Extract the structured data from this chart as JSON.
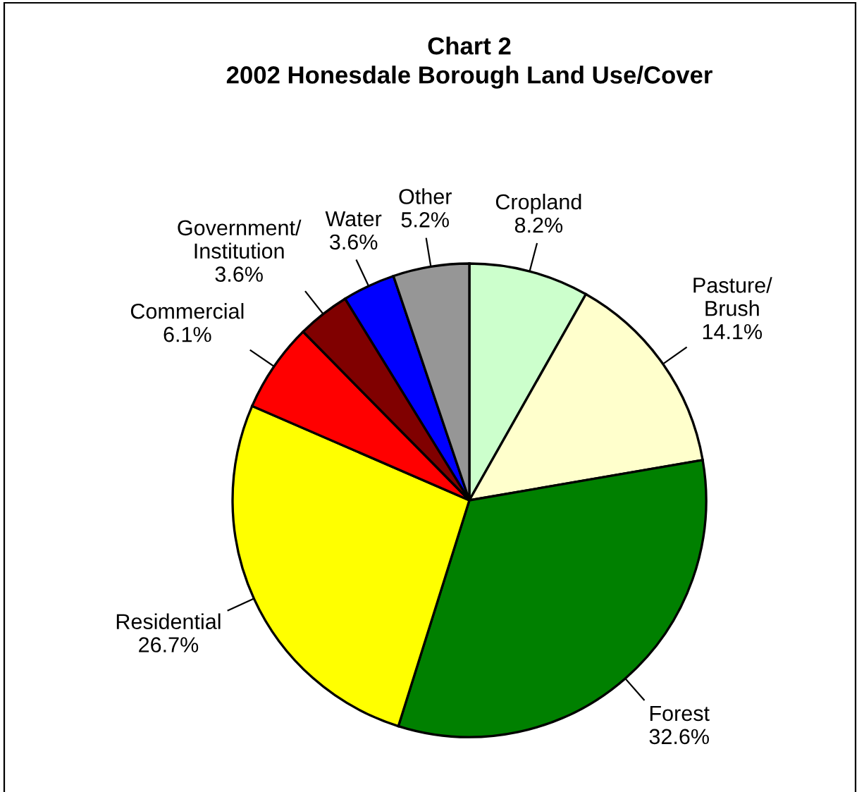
{
  "chart_data": {
    "type": "pie",
    "title": "Chart 2\n2002 Honesdale Borough Land Use/Cover",
    "categories": [
      "Cropland",
      "Pasture/\nBrush",
      "Forest",
      "Residential",
      "Commercial",
      "Government/\nInstitution",
      "Water",
      "Other"
    ],
    "values": [
      8.2,
      14.1,
      32.6,
      26.7,
      6.1,
      3.6,
      3.6,
      5.2
    ],
    "value_labels": [
      "8.2%",
      "14.1%",
      "32.6%",
      "26.7%",
      "6.1%",
      "3.6%",
      "3.6%",
      "5.2%"
    ],
    "colors": [
      "#ccffcc",
      "#ffffcc",
      "#008000",
      "#ffff00",
      "#ff0000",
      "#800000",
      "#0000ff",
      "#969696"
    ]
  }
}
